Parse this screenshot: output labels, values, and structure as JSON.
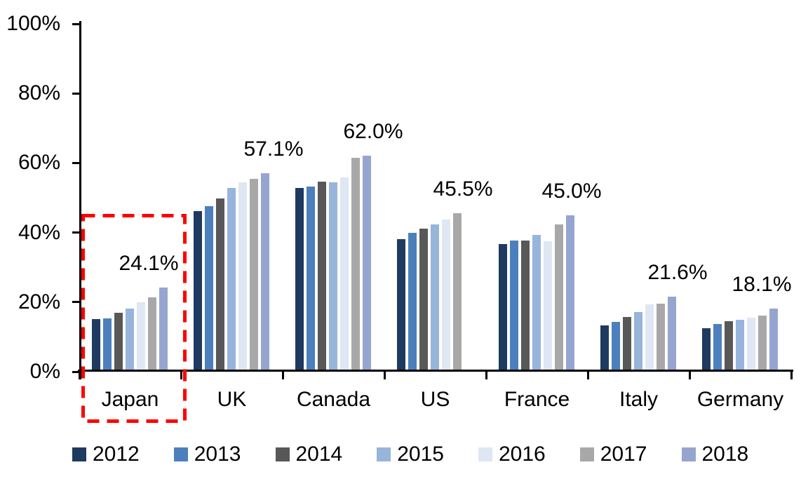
{
  "chart_data": {
    "type": "bar",
    "title": "",
    "xlabel": "",
    "ylabel": "",
    "categories": [
      "Japan",
      "UK",
      "Canada",
      "US",
      "France",
      "Italy",
      "Germany"
    ],
    "series": [
      {
        "name": "2012",
        "color": "#1E3A60",
        "values": [
          15.1,
          46.1,
          52.8,
          38.2,
          36.6,
          13.4,
          12.4
        ]
      },
      {
        "name": "2013",
        "color": "#4C80BC",
        "values": [
          15.3,
          47.6,
          53.3,
          40.0,
          37.7,
          14.3,
          13.8
        ]
      },
      {
        "name": "2014",
        "color": "#585858",
        "values": [
          16.9,
          49.7,
          54.6,
          41.1,
          37.7,
          15.7,
          14.5
        ]
      },
      {
        "name": "2015",
        "color": "#97B4DB",
        "values": [
          18.2,
          52.9,
          54.4,
          42.3,
          39.4,
          17.1,
          14.9
        ]
      },
      {
        "name": "2016",
        "color": "#DEE7F3",
        "values": [
          20.0,
          54.5,
          55.9,
          43.7,
          37.4,
          19.3,
          15.6
        ]
      },
      {
        "name": "2017",
        "color": "#A8A8A8",
        "values": [
          21.3,
          55.5,
          61.5,
          45.5,
          42.3,
          19.5,
          16.1
        ]
      },
      {
        "name": "2018",
        "color": "#96A5D0",
        "values": [
          24.1,
          57.1,
          62.0,
          null,
          45.0,
          21.6,
          18.1
        ]
      }
    ],
    "data_labels": [
      "24.1%",
      "57.1%",
      "62.0%",
      "45.5%",
      "45.0%",
      "21.6%",
      "18.1%"
    ],
    "y_ticks": [
      "0%",
      "20%",
      "40%",
      "60%",
      "80%",
      "100%"
    ],
    "ylim": [
      0,
      100
    ],
    "grid": false,
    "legend_position": "bottom",
    "annotation": {
      "type": "dashed-rectangle",
      "highlighted_category": "Japan",
      "color": "#FF0000"
    }
  }
}
